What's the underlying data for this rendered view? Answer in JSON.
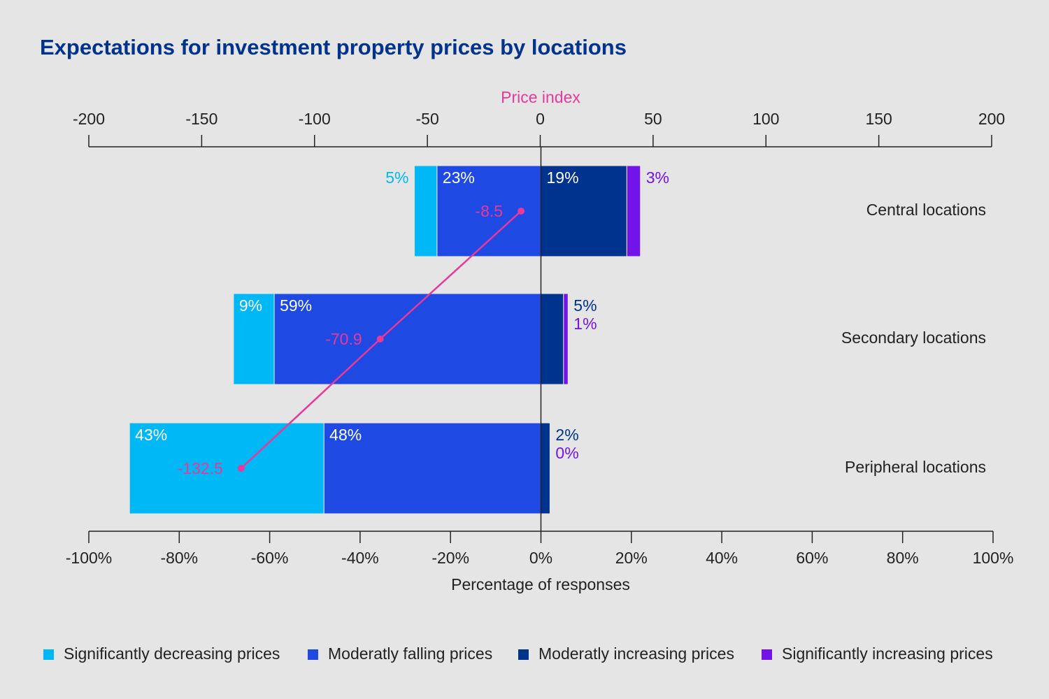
{
  "chart_data": {
    "type": "bar",
    "orientation": "horizontal",
    "stacked": "diverging",
    "title": "Expectations for investment property prices by locations",
    "xlabel": "Percentage of responses",
    "x2label": "Price index",
    "categories": [
      "Central locations",
      "Secondary locations",
      "Peripheral locations"
    ],
    "series": [
      {
        "name": "Significantly decreasing prices",
        "color": "#00b8f5",
        "values": [
          -5,
          -9,
          -43
        ],
        "value_labels": [
          "5%",
          "9%",
          "43%"
        ]
      },
      {
        "name": "Moderatly falling prices",
        "color": "#1e49e2",
        "values": [
          -23,
          -59,
          -48
        ],
        "value_labels": [
          "23%",
          "59%",
          "48%"
        ]
      },
      {
        "name": "Moderatly increasing prices",
        "color": "#00338d",
        "values": [
          19,
          5,
          2
        ],
        "value_labels": [
          "19%",
          "5%",
          "2%"
        ]
      },
      {
        "name": "Significantly increasing prices",
        "color": "#7213ea",
        "values": [
          3,
          1,
          0
        ],
        "value_labels": [
          "3%",
          "1%",
          "0%"
        ]
      }
    ],
    "line": {
      "type": "line",
      "axis": "x2",
      "color": "#e8399a",
      "values": [
        -8.5,
        -70.9,
        -132.5
      ]
    },
    "xlim": [
      -100,
      100
    ],
    "xticks": [
      {
        "value": -100,
        "label": "-100%"
      },
      {
        "value": -80,
        "label": "-80%"
      },
      {
        "value": -60,
        "label": "-60%"
      },
      {
        "value": -40,
        "label": "-40%"
      },
      {
        "value": -20,
        "label": "-20%"
      },
      {
        "value": 0,
        "label": "0%"
      },
      {
        "value": 20,
        "label": "20%"
      },
      {
        "value": 40,
        "label": "40%"
      },
      {
        "value": 60,
        "label": "60%"
      },
      {
        "value": 80,
        "label": "80%"
      },
      {
        "value": 100,
        "label": "100%"
      }
    ],
    "x2lim": [
      -200,
      200
    ],
    "x2ticks": [
      -200,
      -150,
      -100,
      -50,
      0,
      50,
      100,
      150,
      200
    ],
    "legend": "bottom"
  }
}
